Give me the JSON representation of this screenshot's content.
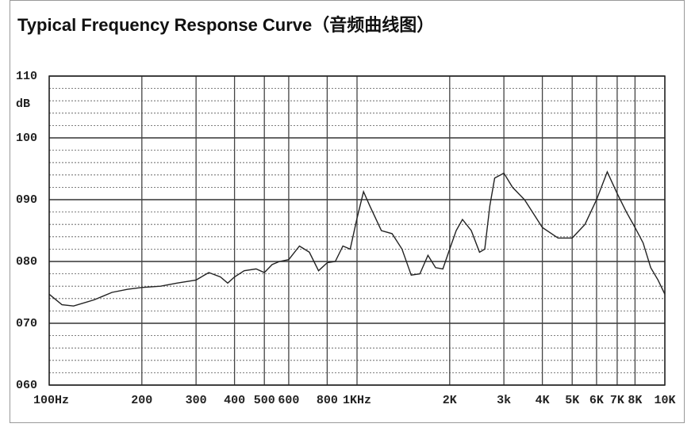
{
  "chart_data": {
    "type": "line",
    "title": "Typical Frequency Response Curve（音频曲线图）",
    "y_label": "dB",
    "x": [
      100,
      110,
      120,
      140,
      160,
      180,
      200,
      230,
      260,
      300,
      330,
      360,
      380,
      400,
      430,
      470,
      500,
      530,
      560,
      600,
      650,
      700,
      750,
      800,
      850,
      900,
      950,
      1000,
      1050,
      1100,
      1200,
      1300,
      1400,
      1500,
      1600,
      1700,
      1800,
      1900,
      2000,
      2100,
      2200,
      2350,
      2500,
      2600,
      2700,
      2800,
      3000,
      3200,
      3500,
      4000,
      4500,
      5000,
      5500,
      6000,
      6500,
      7000,
      7500,
      8000,
      8500,
      9000,
      9500,
      10000
    ],
    "values": [
      74.7,
      73,
      72.8,
      73.8,
      75,
      75.5,
      75.8,
      76,
      76.5,
      77,
      78.2,
      77.5,
      76.5,
      77.5,
      78.5,
      78.8,
      78.2,
      79.5,
      80,
      80.3,
      82.5,
      81.5,
      78.5,
      79.8,
      80,
      82.5,
      82,
      87,
      91.3,
      89,
      85,
      84.5,
      82,
      77.8,
      78,
      81,
      79,
      78.8,
      82,
      85,
      86.8,
      85,
      81.5,
      82,
      89,
      93.5,
      94.3,
      92,
      90,
      85.5,
      83.8,
      83.8,
      86,
      90,
      94.5,
      91,
      88,
      85.5,
      83,
      79,
      77,
      74.7
    ],
    "color": "#222222",
    "log_x": true,
    "grid": true,
    "xlim": [
      100,
      10000
    ],
    "xticks": [
      {
        "value": 100,
        "label": "100Hz"
      },
      200,
      300,
      400,
      500,
      600,
      800,
      {
        "value": 1000,
        "label": "1KHz"
      },
      {
        "value": 2000,
        "label": "2K"
      },
      {
        "value": 3000,
        "label": "3k"
      },
      {
        "value": 4000,
        "label": "4K"
      },
      {
        "value": 5000,
        "label": "5K"
      },
      {
        "value": 6000,
        "label": "6K"
      },
      {
        "value": 7000,
        "label": "7K"
      },
      {
        "value": 8000,
        "label": "8K"
      },
      {
        "value": 10000,
        "label": "10K"
      }
    ],
    "ylim": [
      60,
      110
    ],
    "yticks": [
      {
        "value": 60,
        "label": "060"
      },
      {
        "value": 70,
        "label": "070"
      },
      {
        "value": 80,
        "label": "080"
      },
      {
        "value": 90,
        "label": "090"
      },
      100,
      110
    ]
  }
}
